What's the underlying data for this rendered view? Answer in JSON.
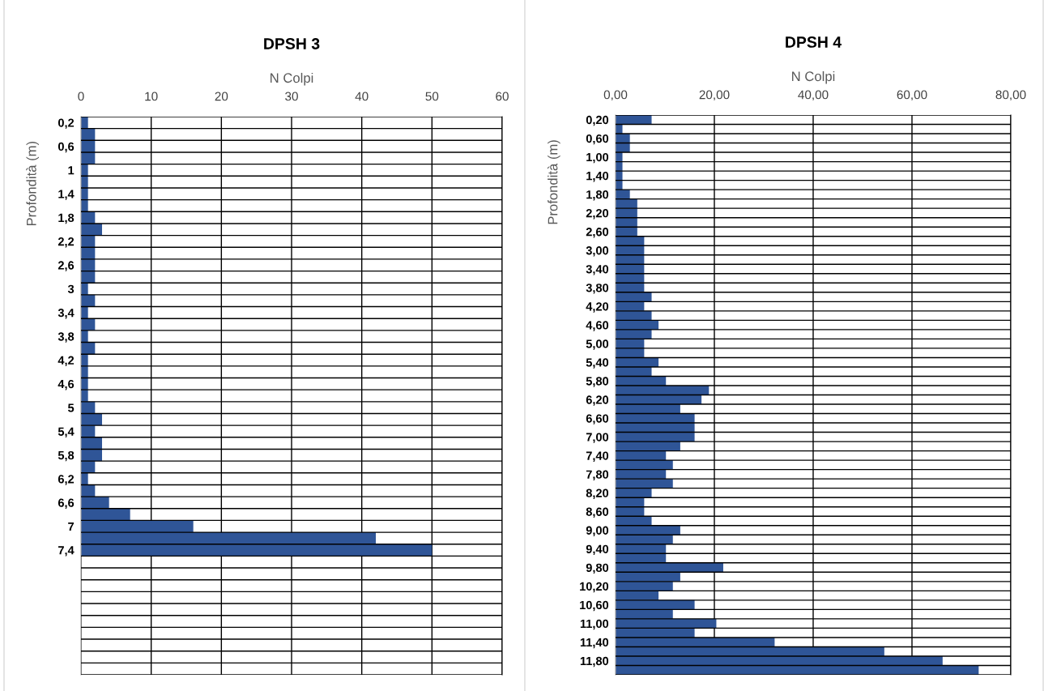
{
  "chart_data": [
    {
      "type": "bar",
      "orientation": "horizontal",
      "title": "DPSH 3",
      "xlabel": "N Colpi",
      "ylabel": "Profondità (m)",
      "grid": true,
      "legend": false,
      "categories": [
        "0,2",
        null,
        "0,6",
        null,
        "1",
        null,
        "1,4",
        null,
        "1,8",
        null,
        "2,2",
        null,
        "2,6",
        null,
        "3",
        null,
        "3,4",
        null,
        "3,8",
        null,
        "4,2",
        null,
        "4,6",
        null,
        "5",
        null,
        "5,4",
        null,
        "5,8",
        null,
        "6,2",
        null,
        "6,6",
        null,
        "7",
        null,
        "7,4",
        null,
        null,
        null,
        null,
        null,
        null,
        null,
        null,
        null,
        null
      ],
      "series": [
        {
          "color": "#2f5597",
          "values": [
            1,
            2,
            2,
            2,
            1,
            1,
            1,
            1,
            2,
            3,
            2,
            2,
            2,
            2,
            1,
            2,
            1,
            2,
            1,
            2,
            1,
            1,
            1,
            1,
            2,
            3,
            2,
            3,
            3,
            2,
            1,
            2,
            4,
            7,
            16,
            42,
            50,
            null,
            null,
            null,
            null,
            null,
            null,
            null,
            null,
            null,
            null
          ]
        }
      ],
      "xlim": [
        0,
        60
      ],
      "xticks": [
        0,
        10,
        20,
        30,
        40,
        50,
        60
      ]
    },
    {
      "type": "bar",
      "orientation": "horizontal",
      "title": "DPSH 4",
      "xlabel": "N Colpi",
      "ylabel": "Profondità (m)",
      "grid": true,
      "legend": false,
      "categories": [
        "0,20",
        null,
        "0,60",
        null,
        "1,00",
        null,
        "1,40",
        null,
        "1,80",
        null,
        "2,20",
        null,
        "2,60",
        null,
        "3,00",
        null,
        "3,40",
        null,
        "3,80",
        null,
        "4,20",
        null,
        "4,60",
        null,
        "5,00",
        null,
        "5,40",
        null,
        "5,80",
        null,
        "6,20",
        null,
        "6,60",
        null,
        "7,00",
        null,
        "7,40",
        null,
        "7,80",
        null,
        "8,20",
        null,
        "8,60",
        null,
        "9,00",
        null,
        "9,40",
        null,
        "9,80",
        null,
        "10,20",
        null,
        "10,60",
        null,
        "11,00",
        null,
        "11,40",
        null,
        "11,80",
        null
      ],
      "series": [
        {
          "color": "#2f5597",
          "values": [
            7.3,
            1.4,
            2.9,
            2.9,
            1.4,
            1.4,
            1.4,
            1.4,
            2.9,
            4.4,
            4.4,
            4.4,
            4.4,
            5.8,
            5.8,
            5.8,
            5.8,
            5.8,
            5.8,
            7.3,
            5.8,
            7.3,
            8.7,
            7.3,
            5.8,
            5.8,
            8.7,
            7.3,
            10.2,
            18.9,
            17.4,
            13.1,
            16.0,
            16.0,
            16.0,
            13.1,
            10.2,
            11.6,
            10.2,
            11.6,
            7.3,
            5.8,
            5.8,
            7.3,
            13.1,
            11.6,
            10.2,
            10.2,
            21.8,
            13.1,
            11.6,
            8.7,
            16.0,
            11.6,
            20.4,
            16.0,
            32.2,
            54.4,
            66.2,
            73.5
          ]
        }
      ],
      "xlim": [
        0,
        80
      ],
      "xticks": [
        {
          "value": 0,
          "label": "0,00"
        },
        {
          "value": 20,
          "label": "20,00"
        },
        {
          "value": 40,
          "label": "40,00"
        },
        {
          "value": 60,
          "label": "60,00"
        },
        {
          "value": 80,
          "label": "80,00"
        }
      ]
    }
  ]
}
